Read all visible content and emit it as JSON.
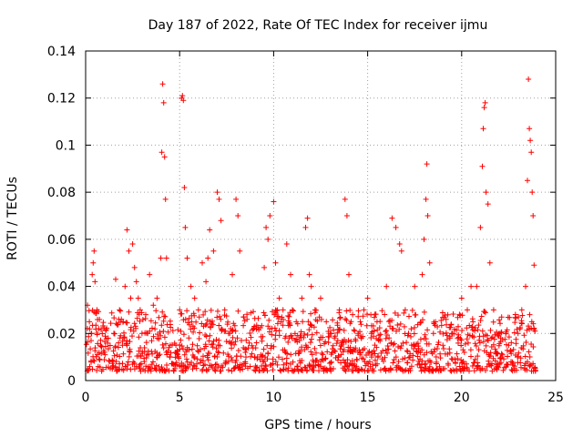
{
  "chart_data": {
    "type": "scatter",
    "title": "Day 187 of 2022, Rate Of TEC Index for receiver ijmu",
    "xlabel": "GPS time / hours",
    "ylabel": "ROTI / TECUs",
    "xlim": [
      0,
      25
    ],
    "ylim": [
      0,
      0.14
    ],
    "xticks": [
      0,
      5,
      10,
      15,
      20,
      25
    ],
    "yticks": [
      0,
      0.02,
      0.04,
      0.06,
      0.08,
      0.1,
      0.12,
      0.14
    ],
    "xtick_labels": [
      "0",
      "5",
      "10",
      "15",
      "20",
      "25"
    ],
    "ytick_labels": [
      "0",
      "0.02",
      "0.04",
      "0.06",
      "0.08",
      "0.1",
      "0.12",
      "0.14"
    ],
    "grid": true,
    "marker": "+",
    "color": "#ff0000",
    "series": [
      {
        "name": "ROTI",
        "points": [
          [
            0.1,
            0.032
          ],
          [
            0.2,
            0.025
          ],
          [
            0.3,
            0.02
          ],
          [
            0.35,
            0.045
          ],
          [
            0.4,
            0.05
          ],
          [
            0.45,
            0.055
          ],
          [
            0.5,
            0.042
          ],
          [
            0.6,
            0.03
          ],
          [
            0.7,
            0.022
          ],
          [
            0.8,
            0.015
          ],
          [
            1.0,
            0.012
          ],
          [
            1.2,
            0.018
          ],
          [
            1.5,
            0.02
          ],
          [
            1.6,
            0.043
          ],
          [
            1.8,
            0.03
          ],
          [
            2.0,
            0.025
          ],
          [
            2.1,
            0.04
          ],
          [
            2.2,
            0.064
          ],
          [
            2.3,
            0.055
          ],
          [
            2.4,
            0.035
          ],
          [
            2.5,
            0.058
          ],
          [
            2.6,
            0.048
          ],
          [
            2.7,
            0.042
          ],
          [
            2.8,
            0.035
          ],
          [
            2.9,
            0.03
          ],
          [
            3.0,
            0.02
          ],
          [
            3.2,
            0.028
          ],
          [
            3.4,
            0.045
          ],
          [
            3.6,
            0.032
          ],
          [
            3.8,
            0.035
          ],
          [
            4.0,
            0.052
          ],
          [
            4.05,
            0.097
          ],
          [
            4.1,
            0.126
          ],
          [
            4.15,
            0.118
          ],
          [
            4.2,
            0.095
          ],
          [
            4.25,
            0.077
          ],
          [
            4.3,
            0.052
          ],
          [
            4.5,
            0.015
          ],
          [
            4.8,
            0.012
          ],
          [
            5.0,
            0.03
          ],
          [
            5.1,
            0.12
          ],
          [
            5.15,
            0.121
          ],
          [
            5.2,
            0.119
          ],
          [
            5.25,
            0.082
          ],
          [
            5.3,
            0.065
          ],
          [
            5.4,
            0.052
          ],
          [
            5.6,
            0.04
          ],
          [
            5.8,
            0.035
          ],
          [
            6.0,
            0.03
          ],
          [
            6.2,
            0.05
          ],
          [
            6.4,
            0.042
          ],
          [
            6.5,
            0.052
          ],
          [
            6.6,
            0.064
          ],
          [
            6.8,
            0.055
          ],
          [
            7.0,
            0.08
          ],
          [
            7.1,
            0.077
          ],
          [
            7.2,
            0.068
          ],
          [
            7.4,
            0.03
          ],
          [
            7.6,
            0.02
          ],
          [
            7.8,
            0.045
          ],
          [
            8.0,
            0.077
          ],
          [
            8.1,
            0.07
          ],
          [
            8.2,
            0.055
          ],
          [
            8.5,
            0.012
          ],
          [
            9.0,
            0.01
          ],
          [
            9.5,
            0.048
          ],
          [
            9.6,
            0.065
          ],
          [
            9.7,
            0.06
          ],
          [
            9.8,
            0.07
          ],
          [
            10.0,
            0.076
          ],
          [
            10.1,
            0.05
          ],
          [
            10.3,
            0.035
          ],
          [
            10.5,
            0.03
          ],
          [
            10.7,
            0.058
          ],
          [
            10.9,
            0.045
          ],
          [
            11.0,
            0.03
          ],
          [
            11.2,
            0.025
          ],
          [
            11.5,
            0.035
          ],
          [
            11.7,
            0.065
          ],
          [
            11.8,
            0.069
          ],
          [
            11.9,
            0.045
          ],
          [
            12.0,
            0.04
          ],
          [
            12.2,
            0.03
          ],
          [
            12.5,
            0.035
          ],
          [
            12.8,
            0.025
          ],
          [
            13.0,
            0.02
          ],
          [
            13.5,
            0.03
          ],
          [
            13.8,
            0.077
          ],
          [
            13.9,
            0.07
          ],
          [
            14.0,
            0.045
          ],
          [
            14.2,
            0.028
          ],
          [
            14.5,
            0.02
          ],
          [
            14.8,
            0.03
          ],
          [
            15.0,
            0.035
          ],
          [
            15.2,
            0.02
          ],
          [
            15.5,
            0.025
          ],
          [
            16.0,
            0.04
          ],
          [
            16.3,
            0.069
          ],
          [
            16.5,
            0.065
          ],
          [
            16.7,
            0.058
          ],
          [
            16.8,
            0.055
          ],
          [
            17.0,
            0.03
          ],
          [
            17.5,
            0.04
          ],
          [
            17.9,
            0.045
          ],
          [
            18.0,
            0.06
          ],
          [
            18.1,
            0.077
          ],
          [
            18.15,
            0.092
          ],
          [
            18.2,
            0.07
          ],
          [
            18.3,
            0.05
          ],
          [
            18.5,
            0.02
          ],
          [
            19.0,
            0.015
          ],
          [
            19.5,
            0.02
          ],
          [
            20.0,
            0.035
          ],
          [
            20.3,
            0.03
          ],
          [
            20.5,
            0.04
          ],
          [
            20.6,
            0.025
          ],
          [
            20.8,
            0.04
          ],
          [
            21.0,
            0.065
          ],
          [
            21.1,
            0.091
          ],
          [
            21.15,
            0.107
          ],
          [
            21.2,
            0.116
          ],
          [
            21.25,
            0.118
          ],
          [
            21.3,
            0.08
          ],
          [
            21.4,
            0.075
          ],
          [
            21.5,
            0.05
          ],
          [
            21.7,
            0.03
          ],
          [
            22.0,
            0.02
          ],
          [
            22.5,
            0.015
          ],
          [
            23.0,
            0.02
          ],
          [
            23.2,
            0.03
          ],
          [
            23.4,
            0.04
          ],
          [
            23.5,
            0.085
          ],
          [
            23.55,
            0.128
          ],
          [
            23.6,
            0.107
          ],
          [
            23.65,
            0.102
          ],
          [
            23.7,
            0.097
          ],
          [
            23.75,
            0.08
          ],
          [
            23.8,
            0.07
          ],
          [
            23.85,
            0.049
          ],
          [
            23.9,
            0.021
          ]
        ],
        "baseline_band": [
          0.004,
          0.03
        ]
      }
    ]
  }
}
